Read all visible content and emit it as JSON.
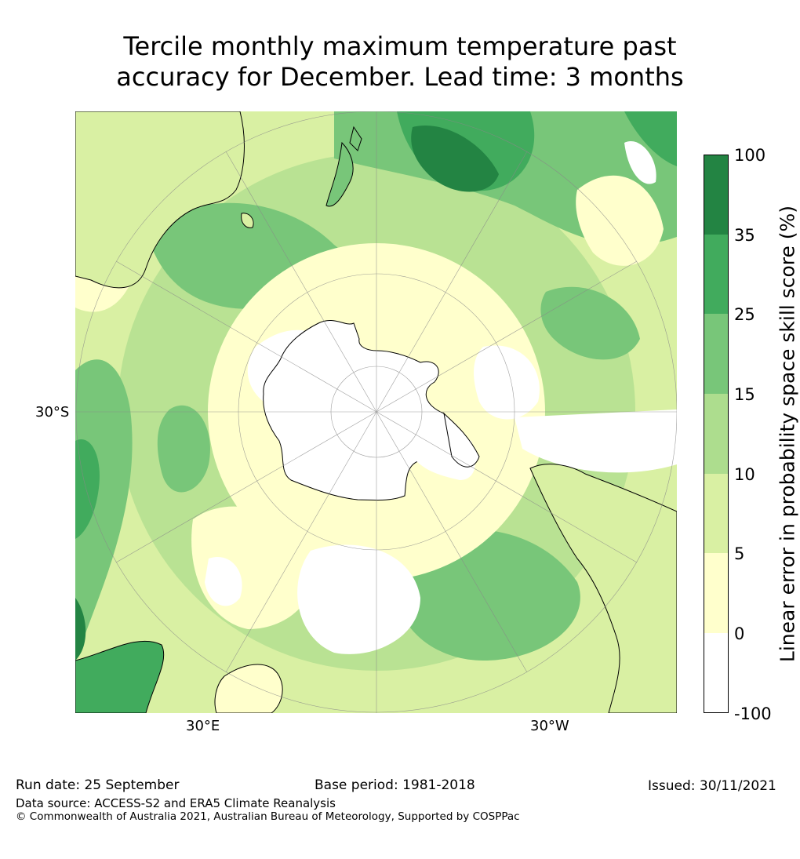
{
  "title": {
    "line1": "Tercile monthly maximum temperature past",
    "line2": "accuracy for December. Lead time: 3 months"
  },
  "map": {
    "projection": "south-polar-stereographic",
    "lat_label": "30°S",
    "lon_labels": [
      "30°E",
      "30°W"
    ]
  },
  "colorbar": {
    "label": "Linear error in probability space skill score (%)",
    "ticks": [
      "100",
      "35",
      "25",
      "15",
      "10",
      "5",
      "0",
      "-100"
    ],
    "colors": [
      "#238443",
      "#41ab5d",
      "#78c679",
      "#addd8e",
      "#d9f0a3",
      "#ffffcc",
      "#ffffff"
    ]
  },
  "footer": {
    "run_date": "Run date: 25 September",
    "base_period": "Base period: 1981-2018",
    "issued": "Issued: 30/11/2021",
    "data_source": "Data source: ACCESS-S2 and ERA5 Climate Reanalysis",
    "copyright": "© Commonwealth of Australia 2021, Australian Bureau of Meteorology, Supported by COSPPac"
  }
}
